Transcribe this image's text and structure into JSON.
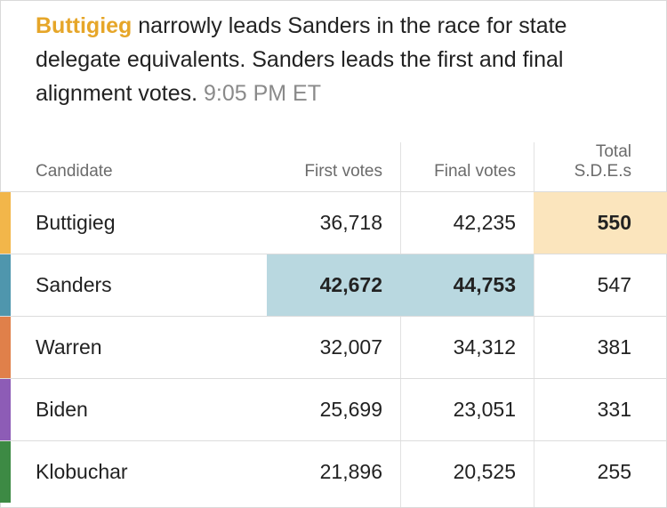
{
  "headline": {
    "leader": "Buttigieg",
    "text": " narrowly leads Sanders in the race for state delegate equivalents. Sanders leads the first and final alignment votes. ",
    "time": "9:05 PM ET",
    "leader_color": "#e6a629"
  },
  "table": {
    "columns": {
      "candidate": "Candidate",
      "first": "First votes",
      "final": "Final votes",
      "sde": "Total\nS.D.E.s"
    },
    "rows": [
      {
        "name": "Buttigieg",
        "first": "36,718",
        "final": "42,235",
        "sde": "550",
        "color": "#f2b64a",
        "highlight_first": false,
        "highlight_final": false,
        "highlight_sde": true
      },
      {
        "name": "Sanders",
        "first": "42,672",
        "final": "44,753",
        "sde": "547",
        "color": "#4f96ad",
        "highlight_first": true,
        "highlight_final": true,
        "highlight_sde": false
      },
      {
        "name": "Warren",
        "first": "32,007",
        "final": "34,312",
        "sde": "381",
        "color": "#e0804a",
        "highlight_first": false,
        "highlight_final": false,
        "highlight_sde": false
      },
      {
        "name": "Biden",
        "first": "25,699",
        "final": "23,051",
        "sde": "331",
        "color": "#8d5cb6",
        "highlight_first": false,
        "highlight_final": false,
        "highlight_sde": false
      },
      {
        "name": "Klobuchar",
        "first": "21,896",
        "final": "20,525",
        "sde": "255",
        "color": "#3d8a44",
        "highlight_first": false,
        "highlight_final": false,
        "highlight_sde": false
      }
    ]
  }
}
